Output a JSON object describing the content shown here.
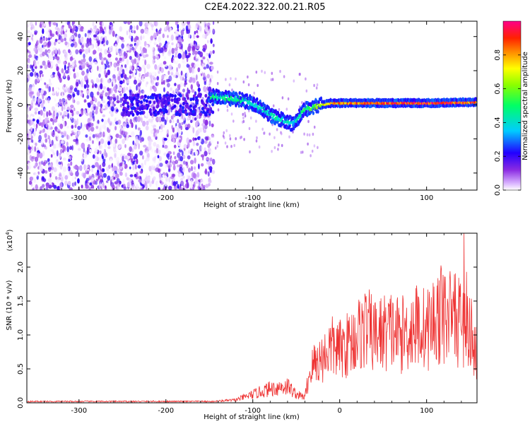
{
  "chart_data": [
    {
      "type": "heatmap",
      "title": "C2E4.2022.322.00.21.R05",
      "xlabel": "Height of straight line (km)",
      "ylabel": "Frequency (Hz)",
      "xlim": [
        -360,
        158
      ],
      "ylim": [
        -50,
        49
      ],
      "xticks": [
        -300,
        -200,
        -100,
        0,
        100
      ],
      "yticks": [
        -40,
        -20,
        0,
        20,
        40
      ],
      "colorbar": {
        "label": "Normalized spectral amplitude",
        "ticks": [
          "0.0",
          "0.2",
          "0.4",
          "0.6",
          "0.8"
        ],
        "range": [
          0,
          1
        ],
        "colormap": "white-purple-blue-cyan-green-yellow-orange-red-magenta"
      },
      "noise_region_x": [
        -360,
        -145
      ],
      "ridge": {
        "x": [
          -150,
          -130,
          -115,
          -100,
          -90,
          -80,
          -70,
          -60,
          -55,
          -50,
          -45,
          -40,
          -30,
          -20,
          -10,
          0,
          50,
          100,
          158
        ],
        "freq": [
          5,
          4,
          3,
          1,
          -2,
          -6,
          -8,
          -10,
          -11,
          -9,
          -6,
          -3,
          -1,
          0,
          1,
          1,
          1,
          1,
          1.5
        ],
        "amplitude": [
          0.45,
          0.45,
          0.45,
          0.4,
          0.4,
          0.4,
          0.4,
          0.4,
          0.35,
          0.4,
          0.45,
          0.5,
          0.6,
          0.7,
          0.8,
          0.8,
          0.85,
          0.9,
          0.85
        ]
      }
    },
    {
      "type": "line",
      "xlabel": "Height of straight line (km)",
      "ylabel": "SNR (10 * v/v)",
      "yscale_label": "(x10",
      "yscale_exp": "4",
      "yscale_close": ")",
      "xlim": [
        -360,
        158
      ],
      "ylim": [
        0,
        2.5
      ],
      "xticks": [
        -300,
        -200,
        -100,
        0,
        100
      ],
      "yticks": [
        "0.0",
        "0.5",
        "1.0",
        "1.5",
        "2.0"
      ],
      "color": "#ee3333",
      "envelope": {
        "x": [
          -360,
          -150,
          -120,
          -100,
          -80,
          -60,
          -50,
          -40,
          -35,
          -30,
          -20,
          -10,
          0,
          10,
          20,
          30,
          40,
          50,
          60,
          70,
          80,
          90,
          100,
          110,
          120,
          130,
          140,
          150,
          158
        ],
        "y": [
          0.02,
          0.02,
          0.05,
          0.15,
          0.25,
          0.3,
          0.15,
          0.1,
          0.5,
          0.7,
          0.8,
          1.0,
          0.95,
          1.05,
          1.2,
          1.35,
          1.2,
          1.25,
          1.3,
          1.2,
          1.3,
          1.4,
          1.3,
          1.5,
          1.6,
          1.5,
          1.4,
          1.3,
          0.9
        ]
      },
      "peak": {
        "x": 143,
        "y": 2.5
      }
    }
  ]
}
